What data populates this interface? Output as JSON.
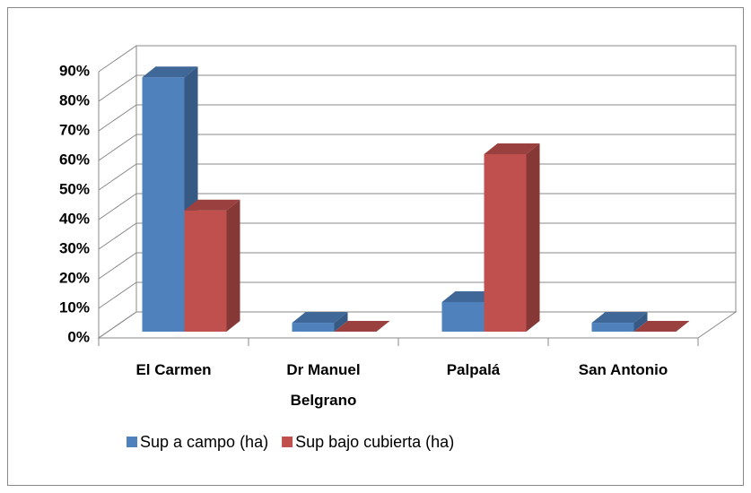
{
  "chart_data": {
    "type": "bar3d",
    "categories": [
      "El Carmen",
      "Dr Manuel Belgrano",
      "Palpalá",
      "San Antonio"
    ],
    "series": [
      {
        "name": "Sup a campo (ha)",
        "color": "#4f81bd",
        "values": [
          86,
          3,
          10,
          3
        ]
      },
      {
        "name": "Sup bajo cubierta (ha)",
        "color": "#c0504d",
        "values": [
          41,
          0,
          60,
          0
        ]
      }
    ],
    "ylim": [
      0,
      90
    ],
    "yticks": [
      {
        "value": 0,
        "label": "0%"
      },
      {
        "value": 10,
        "label": "10%"
      },
      {
        "value": 20,
        "label": "20%"
      },
      {
        "value": 30,
        "label": "30%"
      },
      {
        "value": 40,
        "label": "40%"
      },
      {
        "value": 50,
        "label": "50%"
      },
      {
        "value": 60,
        "label": "60%"
      },
      {
        "value": 70,
        "label": "70%"
      },
      {
        "value": 80,
        "label": "80%"
      },
      {
        "value": 90,
        "label": "90%"
      }
    ],
    "grid": true,
    "legend": "bottom"
  }
}
